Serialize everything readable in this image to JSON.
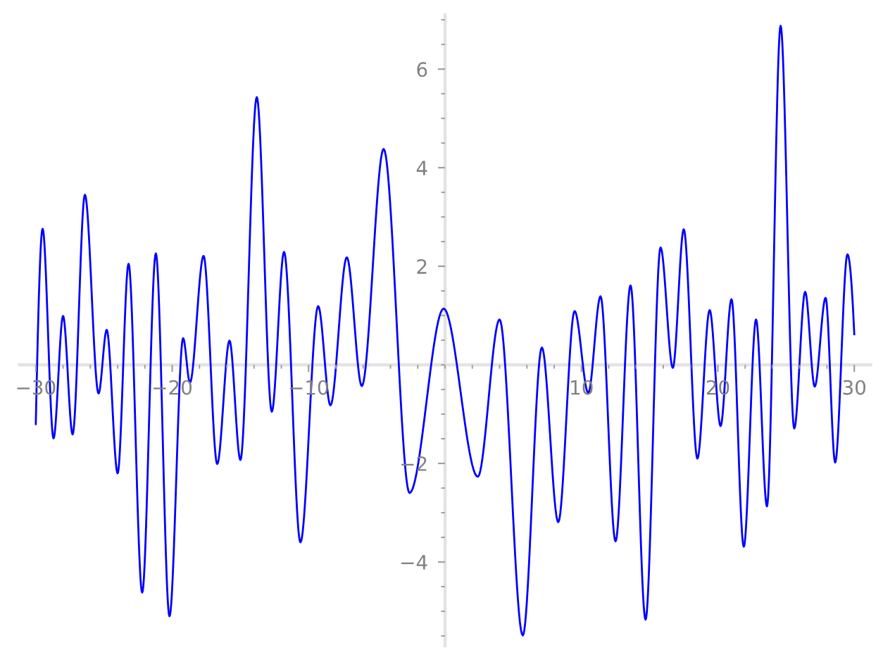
{
  "chart_data": {
    "type": "line",
    "x": [
      -30,
      -29.5,
      -28.7,
      -28.0,
      -27.3,
      -26.4,
      -25.4,
      -24.8,
      -24.0,
      -23.2,
      -22.2,
      -21.2,
      -20.2,
      -19.2,
      -18.7,
      -17.7,
      -16.7,
      -15.8,
      -15.0,
      -13.8,
      -12.7,
      -11.8,
      -10.6,
      -9.3,
      -8.4,
      -7.2,
      -6.1,
      -4.5,
      -2.6,
      -0.1,
      2.4,
      4.0,
      5.7,
      7.1,
      8.3,
      9.5,
      10.5,
      11.4,
      12.5,
      13.6,
      14.7,
      15.8,
      16.7,
      17.5,
      18.5,
      19.4,
      20.2,
      21.0,
      21.9,
      22.8,
      23.6,
      24.6,
      25.6,
      26.4,
      27.1,
      27.9,
      28.6,
      29.5,
      30
    ],
    "series": [
      {
        "color": "#0000ff",
        "line_style": "solid",
        "values": [
          -1.2,
          2.76,
          -1.49,
          0.99,
          -1.41,
          3.45,
          -0.58,
          0.71,
          -2.2,
          2.05,
          -4.62,
          2.26,
          -5.1,
          0.54,
          -0.36,
          2.21,
          -2.01,
          0.49,
          -1.93,
          5.43,
          -0.95,
          2.29,
          -3.6,
          1.19,
          -0.82,
          2.18,
          -0.43,
          4.38,
          -2.6,
          1.14,
          -2.27,
          0.92,
          -5.49,
          0.35,
          -3.19,
          1.09,
          -0.57,
          1.39,
          -3.58,
          1.61,
          -5.17,
          2.38,
          -0.06,
          2.75,
          -1.9,
          1.11,
          -1.24,
          1.33,
          -3.69,
          0.92,
          -2.87,
          6.88,
          -1.29,
          1.48,
          -0.44,
          1.36,
          -1.98,
          2.24,
          0.62
        ]
      }
    ],
    "xlim": [
      -31.2,
      31.2
    ],
    "ylim": [
      -5.7,
      7.1
    ],
    "xticks": [
      {
        "value": -30,
        "label": "−30"
      },
      {
        "value": -20,
        "label": "−20"
      },
      {
        "value": -10,
        "label": "−10"
      },
      10,
      20,
      30
    ],
    "yticks": [
      {
        "value": -4,
        "label": "−4"
      },
      {
        "value": -2,
        "label": "−2"
      },
      2,
      4,
      6
    ]
  }
}
